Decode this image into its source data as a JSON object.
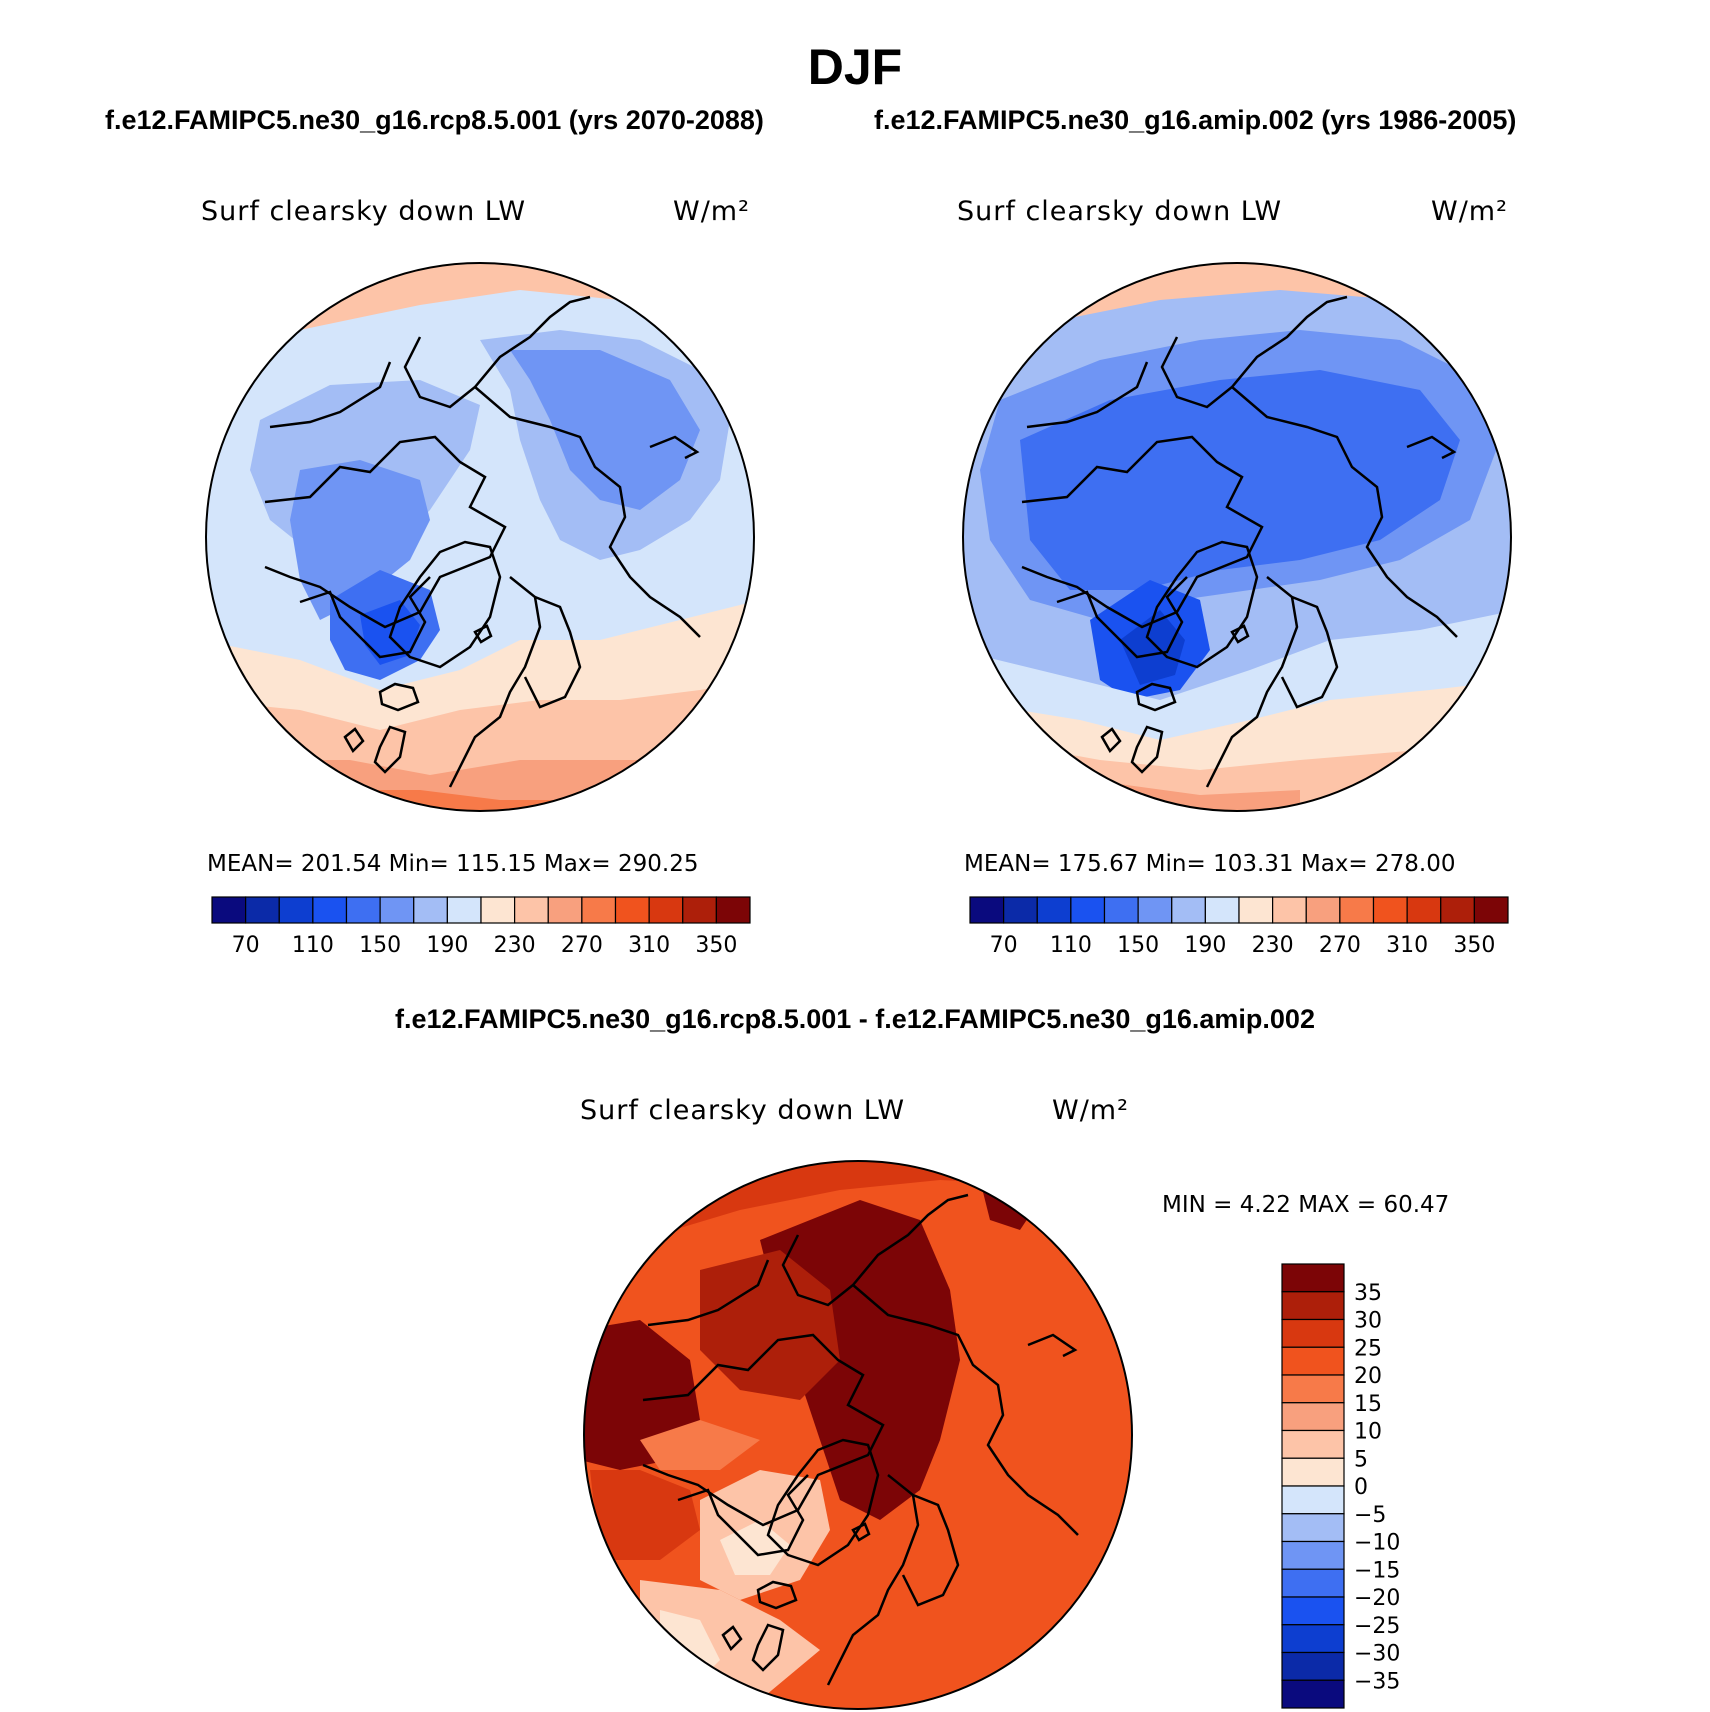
{
  "season_title": "DJF",
  "panels": [
    {
      "case_title": "f.e12.FAMIPC5.ne30_g16.rcp8.5.001 (yrs 2070-2088)",
      "variable": "Surf clearsky down LW",
      "units": "W/m²",
      "stats": "MEAN= 201.54   Min= 115.15   Max= 290.25",
      "mean": 201.54,
      "min": 115.15,
      "max": 290.25
    },
    {
      "case_title": "f.e12.FAMIPC5.ne30_g16.amip.002 (yrs 1986-2005)",
      "variable": "Surf clearsky down LW",
      "units": "W/m²",
      "stats": "MEAN= 175.67   Min= 103.31   Max= 278.00",
      "mean": 175.67,
      "min": 103.31,
      "max": 278.0
    }
  ],
  "diff_panel": {
    "case_title": "f.e12.FAMIPC5.ne30_g16.rcp8.5.001 - f.e12.FAMIPC5.ne30_g16.amip.002",
    "variable": "Surf clearsky down LW",
    "units": "W/m²",
    "stats": "MIN =    4.22  MAX =   60.47",
    "min": 4.22,
    "max": 60.47
  },
  "colorbar_horizontal": {
    "tick_labels": [
      "70",
      "110",
      "150",
      "190",
      "230",
      "270",
      "310",
      "350"
    ],
    "colors": [
      "#0a0a7e",
      "#0b2aa8",
      "#0d3ed0",
      "#1a52f0",
      "#3e6ff2",
      "#6f95f4",
      "#a3bdf5",
      "#d4e5fb",
      "#fde5d2",
      "#fdc4a8",
      "#f8a07e",
      "#f77a49",
      "#f0531e",
      "#d83810",
      "#ad1f0a",
      "#7c0506"
    ]
  },
  "colorbar_vertical": {
    "tick_labels": [
      "35",
      "30",
      "25",
      "20",
      "15",
      "10",
      "5",
      "0",
      "−5",
      "−10",
      "−15",
      "−20",
      "−25",
      "−30",
      "−35"
    ],
    "colors_top_to_bottom": [
      "#7c0506",
      "#ad1f0a",
      "#d83810",
      "#f0531e",
      "#f77a49",
      "#f8a07e",
      "#fdc4a8",
      "#fde5d2",
      "#d4e5fb",
      "#a3bdf5",
      "#6f95f4",
      "#3e6ff2",
      "#1a52f0",
      "#0d3ed0",
      "#0b2aa8",
      "#0a0a7e"
    ]
  }
}
